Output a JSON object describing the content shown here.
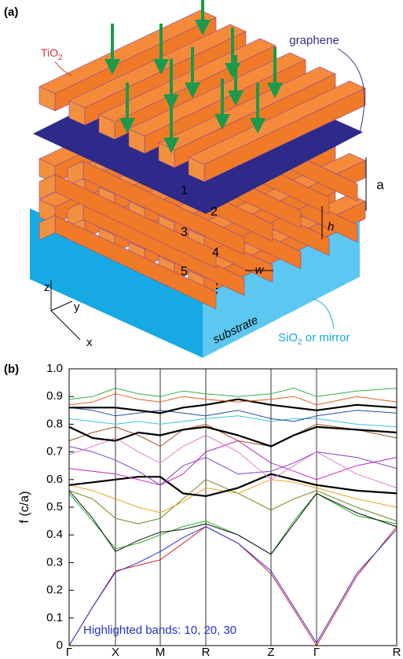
{
  "panel_a": {
    "label": "(a)",
    "tio2": "TiO",
    "tio2_sub": "2",
    "graphene": "graphene",
    "dim_a": "a",
    "dim_h": "h",
    "dim_w": "w",
    "layers": [
      "1",
      "2",
      "3",
      "4",
      "5",
      "⋮"
    ],
    "axes": [
      "z",
      "y",
      "x"
    ],
    "substrate": "substrate",
    "sio2": "SiO",
    "sio2_sub": "2",
    "sio2_rest": " or mirror"
  },
  "chart_data": {
    "type": "line",
    "panel_label": "(b)",
    "y_label": "f (c/a)",
    "annotation": "Highlighted bands: 10, 20, 30",
    "x": [
      0,
      30,
      59,
      88,
      116,
      145,
      174,
      215,
      257,
      286,
      315,
      366,
      417
    ],
    "xlim": [
      0,
      417
    ],
    "xticks": [
      {
        "value": 0,
        "label": "Γ"
      },
      {
        "value": 59,
        "label": "X"
      },
      {
        "value": 116,
        "label": "M"
      },
      {
        "value": 174,
        "label": "R"
      },
      {
        "value": 257,
        "label": "Z"
      },
      {
        "value": 315,
        "label": "Γ"
      },
      {
        "value": 417,
        "label": "R"
      }
    ],
    "ylim": [
      0,
      1
    ],
    "yticks": [
      0,
      0.1,
      0.2,
      0.3,
      0.4,
      0.5,
      0.6,
      0.7,
      0.8,
      0.9,
      {
        "value": 1,
        "label": "1.0"
      }
    ],
    "series": [
      {
        "color": "#e02020",
        "width": 1,
        "values": [
          0,
          0.14,
          0.27,
          0.29,
          0.31,
          0.37,
          0.43,
          0.37,
          0.26,
          0.13,
          0,
          0.25,
          0.43
        ]
      },
      {
        "color": "#2030d0",
        "width": 1,
        "values": [
          0,
          0.14,
          0.265,
          0.3,
          0.34,
          0.39,
          0.43,
          0.37,
          0.27,
          0.14,
          0.01,
          0.26,
          0.42
        ]
      },
      {
        "color": "#20b020",
        "width": 1,
        "values": [
          0.55,
          0.45,
          0.35,
          0.37,
          0.4,
          0.43,
          0.45,
          0.4,
          0.33,
          0.45,
          0.55,
          0.47,
          0.44
        ]
      },
      {
        "color": "#111111",
        "width": 1,
        "values": [
          0.56,
          0.46,
          0.34,
          0.38,
          0.41,
          0.42,
          0.44,
          0.4,
          0.33,
          0.44,
          0.55,
          0.48,
          0.43
        ]
      },
      {
        "color": "#6a8a20",
        "width": 1,
        "values": [
          0.56,
          0.53,
          0.46,
          0.44,
          0.46,
          0.53,
          0.6,
          0.55,
          0.49,
          0.53,
          0.56,
          0.5,
          0.45
        ]
      },
      {
        "color": "#f0a020",
        "width": 1,
        "values": [
          0.58,
          0.56,
          0.53,
          0.5,
          0.48,
          0.52,
          0.57,
          0.55,
          0.6,
          0.59,
          0.57,
          0.53,
          0.5
        ]
      },
      {
        "color": "#000000",
        "width": 2.2,
        "values": [
          0.58,
          0.59,
          0.6,
          0.61,
          0.61,
          0.55,
          0.54,
          0.57,
          0.62,
          0.6,
          0.58,
          0.56,
          0.55
        ]
      },
      {
        "color": "#c020c0",
        "width": 1,
        "values": [
          0.64,
          0.63,
          0.62,
          0.6,
          0.58,
          0.62,
          0.7,
          0.74,
          0.66,
          0.63,
          0.6,
          0.65,
          0.68
        ]
      },
      {
        "color": "#8040c0",
        "width": 1,
        "values": [
          0.72,
          0.7,
          0.67,
          0.63,
          0.58,
          0.65,
          0.68,
          0.62,
          0.63,
          0.66,
          0.7,
          0.68,
          0.64
        ]
      },
      {
        "color": "#e080d0",
        "width": 1,
        "values": [
          0.69,
          0.72,
          0.75,
          0.7,
          0.66,
          0.72,
          0.76,
          0.7,
          0.6,
          0.65,
          0.7,
          0.62,
          0.57
        ]
      },
      {
        "color": "#a05020",
        "width": 1,
        "values": [
          0.74,
          0.77,
          0.79,
          0.76,
          0.72,
          0.78,
          0.8,
          0.74,
          0.72,
          0.76,
          0.8,
          0.78,
          0.75
        ]
      },
      {
        "color": "#000000",
        "width": 2.2,
        "values": [
          0.79,
          0.75,
          0.74,
          0.77,
          0.76,
          0.78,
          0.79,
          0.76,
          0.72,
          0.76,
          0.79,
          0.78,
          0.77
        ]
      },
      {
        "color": "#40c0e0",
        "width": 1,
        "values": [
          0.82,
          0.81,
          0.8,
          0.81,
          0.8,
          0.81,
          0.82,
          0.83,
          0.81,
          0.82,
          0.82,
          0.8,
          0.79
        ]
      },
      {
        "color": "#2050a0",
        "width": 1,
        "values": [
          0.86,
          0.85,
          0.83,
          0.84,
          0.85,
          0.84,
          0.83,
          0.85,
          0.82,
          0.81,
          0.83,
          0.85,
          0.84
        ]
      },
      {
        "color": "#000000",
        "width": 2.2,
        "values": [
          0.86,
          0.86,
          0.86,
          0.85,
          0.84,
          0.86,
          0.87,
          0.89,
          0.87,
          0.86,
          0.85,
          0.87,
          0.86
        ]
      },
      {
        "color": "#e06020",
        "width": 1,
        "values": [
          0.87,
          0.88,
          0.91,
          0.89,
          0.88,
          0.9,
          0.89,
          0.88,
          0.89,
          0.9,
          0.87,
          0.9,
          0.88
        ]
      },
      {
        "color": "#30b040",
        "width": 1,
        "values": [
          0.89,
          0.9,
          0.93,
          0.91,
          0.9,
          0.92,
          0.91,
          0.9,
          0.91,
          0.93,
          0.9,
          0.92,
          0.93
        ]
      }
    ]
  }
}
